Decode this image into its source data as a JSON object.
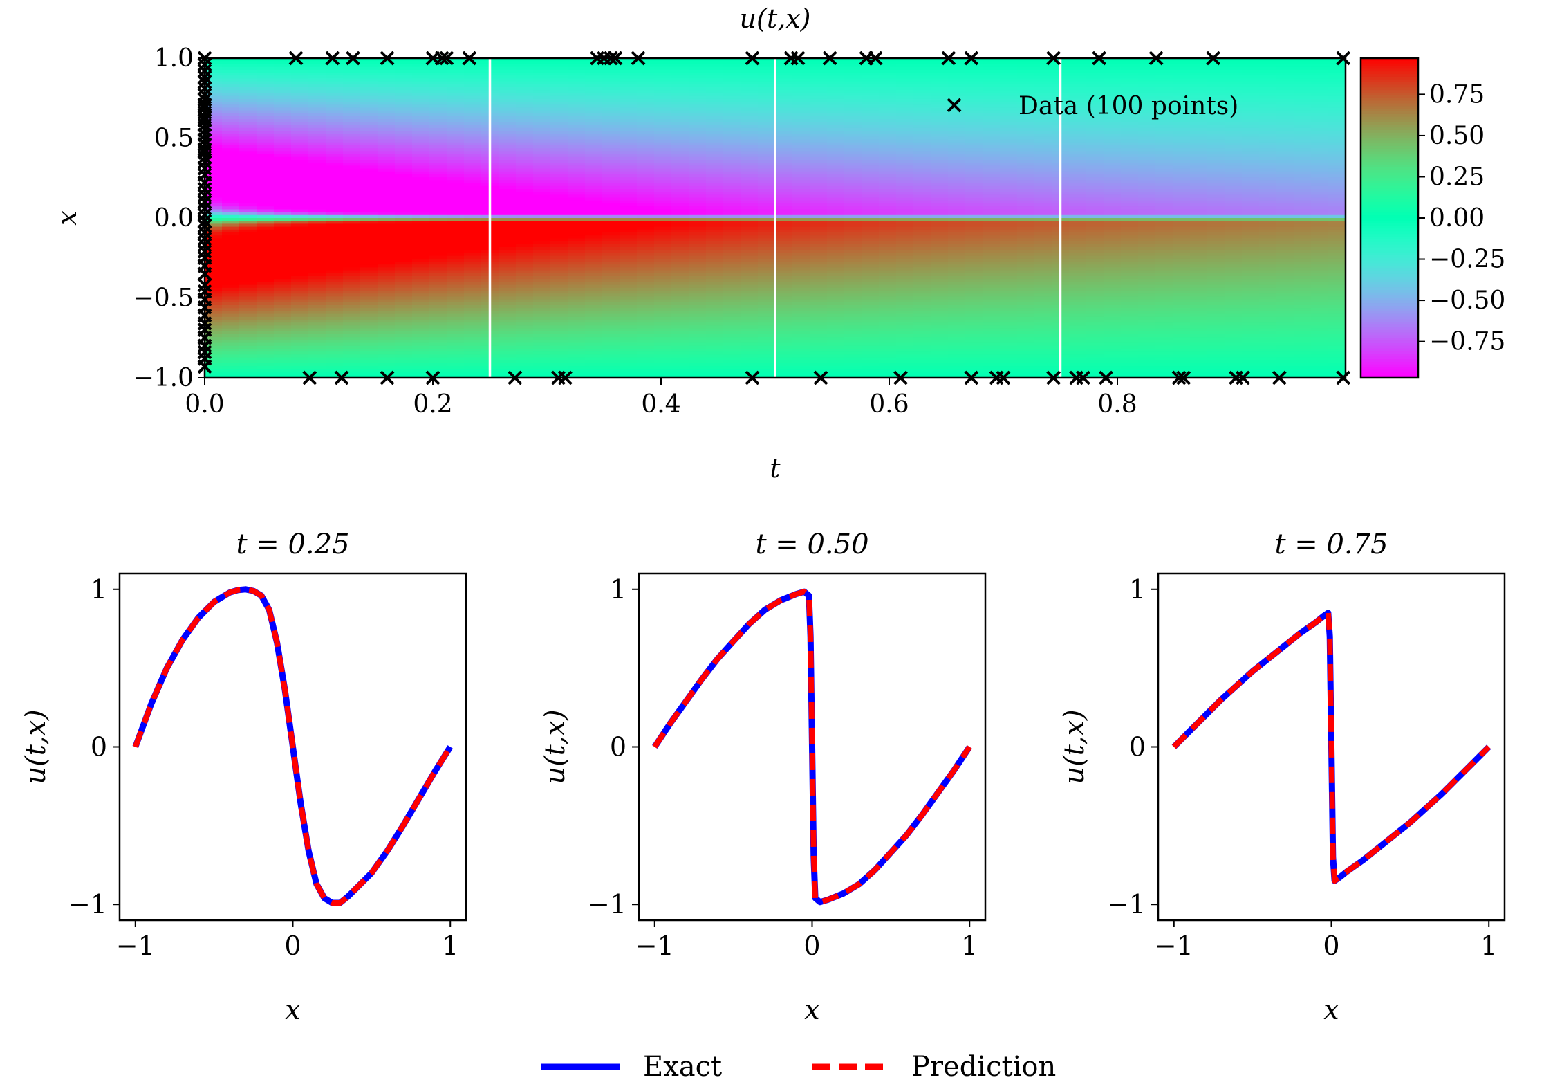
{
  "chart_data": [
    {
      "id": "heatmap",
      "type": "heatmap",
      "title": "u(t,x)",
      "xlabel": "t",
      "ylabel": "x",
      "xlim": [
        0,
        1
      ],
      "ylim": [
        -1,
        1
      ],
      "xticks": [
        0.0,
        0.2,
        0.4,
        0.6,
        0.8
      ],
      "xtick_labels": [
        "0.0",
        "0.2",
        "0.4",
        "0.6",
        "0.8"
      ],
      "yticks": [
        1.0,
        0.5,
        0.0,
        -0.5,
        -1.0
      ],
      "ytick_labels": [
        "1.0",
        "0.5",
        "0.0",
        "−0.5",
        "−1.0"
      ],
      "colormap": "rainbow",
      "colorbar": {
        "range": [
          -0.97,
          0.97
        ],
        "ticks": [
          0.75,
          0.5,
          0.25,
          0.0,
          -0.25,
          -0.5,
          -0.75
        ],
        "tick_labels": [
          "0.75",
          "0.50",
          "0.25",
          "0.00",
          "−0.25",
          "−0.50",
          "−0.75"
        ]
      },
      "vertical_lines_t": [
        0.25,
        0.5,
        0.75
      ],
      "legend": {
        "label": "Data (100 points)",
        "placement": "top-right",
        "marker": "x"
      },
      "data_points": {
        "t0_x": [
          0.96,
          0.92,
          0.88,
          0.85,
          0.81,
          0.77,
          0.74,
          0.71,
          0.69,
          0.66,
          0.63,
          0.61,
          0.58,
          0.55,
          0.52,
          0.49,
          0.46,
          0.43,
          0.41,
          0.38,
          0.35,
          0.31,
          0.27,
          0.22,
          0.18,
          0.14,
          0.1,
          0.06,
          0.02,
          -0.02,
          -0.05,
          -0.09,
          -0.13,
          -0.17,
          -0.21,
          -0.25,
          -0.3,
          -0.35,
          -0.42,
          -0.46,
          -0.51,
          -0.56,
          -0.61,
          -0.66,
          -0.7,
          -0.75,
          -0.8,
          -0.84,
          -0.88,
          -0.93
        ],
        "top_t": [
          0.0,
          0.08,
          0.112,
          0.13,
          0.16,
          0.2,
          0.208,
          0.212,
          0.232,
          0.344,
          0.35,
          0.356,
          0.36,
          0.38,
          0.48,
          0.514,
          0.52,
          0.548,
          0.58,
          0.588,
          0.652,
          0.672,
          0.744,
          0.784,
          0.834,
          0.884,
          0.998
        ],
        "bottom_t": [
          0.092,
          0.12,
          0.16,
          0.2,
          0.272,
          0.31,
          0.316,
          0.48,
          0.54,
          0.61,
          0.672,
          0.694,
          0.7,
          0.744,
          0.764,
          0.77,
          0.79,
          0.854,
          0.858,
          0.904,
          0.91,
          0.942,
          0.998
        ]
      }
    },
    {
      "id": "slice-025",
      "type": "line",
      "title": "t = 0.25",
      "t": 0.25,
      "xlabel": "x",
      "ylabel": "u(t,x)",
      "xlim": [
        -1.1,
        1.1
      ],
      "ylim": [
        -1.1,
        1.1
      ],
      "xticks": [
        -1,
        0,
        1
      ],
      "xtick_labels": [
        "−1",
        "0",
        "1"
      ],
      "yticks": [
        1,
        0,
        -1
      ],
      "ytick_labels": [
        "1",
        "0",
        "−1"
      ],
      "x": [
        -1.0,
        -0.9,
        -0.8,
        -0.7,
        -0.6,
        -0.5,
        -0.4,
        -0.35,
        -0.3,
        -0.25,
        -0.2,
        -0.15,
        -0.1,
        -0.05,
        0.0,
        0.05,
        0.1,
        0.15,
        0.2,
        0.25,
        0.3,
        0.35,
        0.4,
        0.5,
        0.6,
        0.7,
        0.8,
        0.9,
        1.0
      ],
      "series": [
        {
          "name": "Exact",
          "color": "#0000ff",
          "style": "solid",
          "values": [
            0.0,
            0.27,
            0.5,
            0.68,
            0.82,
            0.92,
            0.98,
            0.995,
            1.0,
            0.99,
            0.96,
            0.87,
            0.66,
            0.36,
            0.0,
            -0.36,
            -0.66,
            -0.87,
            -0.96,
            -0.99,
            -0.99,
            -0.95,
            -0.9,
            -0.8,
            -0.66,
            -0.5,
            -0.33,
            -0.16,
            0.0
          ]
        },
        {
          "name": "Prediction",
          "color": "#ff0000",
          "style": "dashed",
          "values": [
            0.0,
            0.27,
            0.5,
            0.68,
            0.82,
            0.92,
            0.98,
            0.995,
            1.0,
            0.99,
            0.96,
            0.87,
            0.66,
            0.36,
            0.0,
            -0.36,
            -0.66,
            -0.87,
            -0.96,
            -0.99,
            -0.99,
            -0.95,
            -0.9,
            -0.8,
            -0.66,
            -0.5,
            -0.33,
            -0.16,
            0.0
          ]
        }
      ]
    },
    {
      "id": "slice-050",
      "type": "line",
      "title": "t = 0.50",
      "t": 0.5,
      "xlabel": "x",
      "ylabel": "u(t,x)",
      "xlim": [
        -1.1,
        1.1
      ],
      "ylim": [
        -1.1,
        1.1
      ],
      "xticks": [
        -1,
        0,
        1
      ],
      "xtick_labels": [
        "−1",
        "0",
        "1"
      ],
      "yticks": [
        1,
        0,
        -1
      ],
      "ytick_labels": [
        "1",
        "0",
        "−1"
      ],
      "x": [
        -1.0,
        -0.9,
        -0.8,
        -0.7,
        -0.6,
        -0.5,
        -0.4,
        -0.3,
        -0.2,
        -0.1,
        -0.05,
        -0.02,
        -0.01,
        0.0,
        0.01,
        0.02,
        0.05,
        0.1,
        0.2,
        0.3,
        0.4,
        0.5,
        0.6,
        0.7,
        0.8,
        0.9,
        1.0
      ],
      "series": [
        {
          "name": "Exact",
          "color": "#0000ff",
          "style": "solid",
          "values": [
            0.0,
            0.15,
            0.29,
            0.43,
            0.56,
            0.67,
            0.78,
            0.87,
            0.93,
            0.97,
            0.985,
            0.96,
            0.7,
            0.0,
            -0.7,
            -0.96,
            -0.985,
            -0.97,
            -0.93,
            -0.87,
            -0.78,
            -0.67,
            -0.56,
            -0.43,
            -0.29,
            -0.15,
            0.0
          ]
        },
        {
          "name": "Prediction",
          "color": "#ff0000",
          "style": "dashed",
          "values": [
            0.0,
            0.15,
            0.29,
            0.43,
            0.56,
            0.67,
            0.78,
            0.87,
            0.93,
            0.97,
            0.985,
            0.96,
            0.7,
            0.0,
            -0.7,
            -0.96,
            -0.985,
            -0.97,
            -0.93,
            -0.87,
            -0.78,
            -0.67,
            -0.56,
            -0.43,
            -0.29,
            -0.15,
            0.0
          ]
        }
      ]
    },
    {
      "id": "slice-075",
      "type": "line",
      "title": "t = 0.75",
      "t": 0.75,
      "xlabel": "x",
      "ylabel": "u(t,x)",
      "xlim": [
        -1.1,
        1.1
      ],
      "ylim": [
        -1.1,
        1.1
      ],
      "xticks": [
        -1,
        0,
        1
      ],
      "xtick_labels": [
        "−1",
        "0",
        "1"
      ],
      "yticks": [
        1,
        0,
        -1
      ],
      "ytick_labels": [
        "1",
        "0",
        "−1"
      ],
      "x": [
        -1.0,
        -0.9,
        -0.8,
        -0.7,
        -0.6,
        -0.5,
        -0.4,
        -0.3,
        -0.2,
        -0.1,
        -0.05,
        -0.02,
        -0.01,
        0.0,
        0.01,
        0.02,
        0.05,
        0.1,
        0.2,
        0.3,
        0.4,
        0.5,
        0.6,
        0.7,
        0.8,
        0.9,
        1.0
      ],
      "series": [
        {
          "name": "Exact",
          "color": "#0000ff",
          "style": "solid",
          "values": [
            0.0,
            0.1,
            0.2,
            0.3,
            0.39,
            0.48,
            0.56,
            0.64,
            0.72,
            0.79,
            0.83,
            0.85,
            0.7,
            0.0,
            -0.7,
            -0.85,
            -0.83,
            -0.79,
            -0.72,
            -0.64,
            -0.56,
            -0.48,
            -0.39,
            -0.3,
            -0.2,
            -0.1,
            0.0
          ]
        },
        {
          "name": "Prediction",
          "color": "#ff0000",
          "style": "dashed",
          "values": [
            0.0,
            0.1,
            0.2,
            0.3,
            0.39,
            0.48,
            0.56,
            0.64,
            0.72,
            0.79,
            0.83,
            0.85,
            0.7,
            0.0,
            -0.7,
            -0.85,
            -0.83,
            -0.79,
            -0.72,
            -0.64,
            -0.56,
            -0.48,
            -0.39,
            -0.3,
            -0.2,
            -0.1,
            0.0
          ]
        }
      ]
    }
  ],
  "legend": {
    "placement": "bottom-center",
    "entries": [
      {
        "label": "Exact",
        "color": "#0000ff",
        "style": "solid"
      },
      {
        "label": "Prediction",
        "color": "#ff0000",
        "style": "dashed"
      }
    ]
  }
}
